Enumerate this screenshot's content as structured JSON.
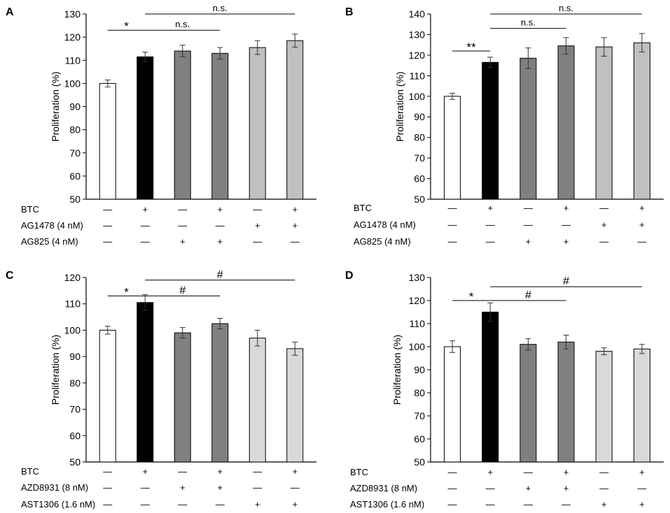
{
  "chart_data": [
    {
      "panel": "A",
      "type": "bar",
      "ylabel": "Proliferation (%)",
      "ylim": [
        50,
        130
      ],
      "yticks": [
        50,
        60,
        70,
        80,
        90,
        100,
        110,
        120,
        130
      ],
      "values": [
        100,
        111.5,
        114,
        113,
        115.5,
        118.5
      ],
      "errors": [
        1.5,
        2,
        2.5,
        2.5,
        3,
        2.8
      ],
      "bar_colors": [
        "#ffffff",
        "#000000",
        "#808080",
        "#808080",
        "#c0c0c0",
        "#c0c0c0"
      ],
      "treatment_rows": [
        {
          "label": "BTC",
          "symbols": [
            "—",
            "+",
            "—",
            "+",
            "—",
            "+"
          ]
        },
        {
          "label": "AG1478 (4 nM)",
          "symbols": [
            "—",
            "—",
            "—",
            "—",
            "+",
            "+"
          ]
        },
        {
          "label": "AG825 (4 nM)",
          "symbols": [
            "—",
            "—",
            "+",
            "+",
            "—",
            "—"
          ]
        }
      ],
      "annotations": [
        {
          "from": 0,
          "to": 1,
          "text": "*",
          "level": 123
        },
        {
          "from": 1,
          "to": 3,
          "text": "n.s.",
          "level": 123
        },
        {
          "from": 1,
          "to": 5,
          "text": "n.s.",
          "level": 130
        }
      ]
    },
    {
      "panel": "B",
      "type": "bar",
      "ylabel": "Proliferation (%)",
      "ylim": [
        50,
        140
      ],
      "yticks": [
        50,
        60,
        70,
        80,
        90,
        100,
        110,
        120,
        130,
        140
      ],
      "values": [
        100,
        116.5,
        118.5,
        124.5,
        124,
        126
      ],
      "errors": [
        1.5,
        2.5,
        5,
        4,
        4.5,
        4.5
      ],
      "bar_colors": [
        "#ffffff",
        "#000000",
        "#808080",
        "#808080",
        "#c0c0c0",
        "#c0c0c0"
      ],
      "treatment_rows": [
        {
          "label": "BTC",
          "symbols": [
            "—",
            "+",
            "—",
            "+",
            "—",
            "+"
          ]
        },
        {
          "label": "AG1478 (4 nM)",
          "symbols": [
            "—",
            "—",
            "—",
            "—",
            "+",
            "+"
          ]
        },
        {
          "label": "AG825 (4 nM)",
          "symbols": [
            "—",
            "—",
            "+",
            "+",
            "—",
            "—"
          ]
        }
      ],
      "annotations": [
        {
          "from": 0,
          "to": 1,
          "text": "**",
          "level": 122
        },
        {
          "from": 1,
          "to": 3,
          "text": "n.s.",
          "level": 133
        },
        {
          "from": 1,
          "to": 5,
          "text": "n.s.",
          "level": 140
        }
      ]
    },
    {
      "panel": "C",
      "type": "bar",
      "ylabel": "Proliferation (%)",
      "ylim": [
        50,
        120
      ],
      "yticks": [
        50,
        60,
        70,
        80,
        90,
        100,
        110,
        120
      ],
      "values": [
        100,
        110.5,
        99,
        102.5,
        97,
        93
      ],
      "errors": [
        1.5,
        3,
        2,
        2,
        3,
        2.5
      ],
      "bar_colors": [
        "#ffffff",
        "#000000",
        "#808080",
        "#808080",
        "#d9d9d9",
        "#d9d9d9"
      ],
      "treatment_rows": [
        {
          "label": "BTC",
          "symbols": [
            "—",
            "+",
            "—",
            "+",
            "—",
            "+"
          ]
        },
        {
          "label": "AZD8931 (8 nM)",
          "symbols": [
            "—",
            "—",
            "+",
            "+",
            "—",
            "—"
          ]
        },
        {
          "label": "AST1306 (1.6 nM)",
          "symbols": [
            "—",
            "—",
            "—",
            "—",
            "+",
            "+"
          ]
        }
      ],
      "annotations": [
        {
          "from": 0,
          "to": 1,
          "text": "*",
          "level": 113
        },
        {
          "from": 1,
          "to": 3,
          "text": "#",
          "level": 113
        },
        {
          "from": 1,
          "to": 5,
          "text": "#",
          "level": 119
        }
      ]
    },
    {
      "panel": "D",
      "type": "bar",
      "ylabel": "Proliferation (%)",
      "ylim": [
        50,
        130
      ],
      "yticks": [
        50,
        60,
        70,
        80,
        90,
        100,
        110,
        120,
        130
      ],
      "values": [
        100,
        115,
        101,
        102,
        98,
        99
      ],
      "errors": [
        2.5,
        4,
        2.5,
        3,
        1.5,
        2
      ],
      "bar_colors": [
        "#ffffff",
        "#000000",
        "#808080",
        "#808080",
        "#d9d9d9",
        "#d9d9d9"
      ],
      "treatment_rows": [
        {
          "label": "BTC",
          "symbols": [
            "—",
            "+",
            "—",
            "+",
            "—",
            "+"
          ]
        },
        {
          "label": "AZD8931 (8 nM)",
          "symbols": [
            "—",
            "—",
            "+",
            "+",
            "—",
            "—"
          ]
        },
        {
          "label": "AST1306 (1.6 nM)",
          "symbols": [
            "—",
            "—",
            "—",
            "—",
            "+",
            "+"
          ]
        }
      ],
      "annotations": [
        {
          "from": 0,
          "to": 1,
          "text": "*",
          "level": 120
        },
        {
          "from": 1,
          "to": 3,
          "text": "#",
          "level": 120
        },
        {
          "from": 1,
          "to": 5,
          "text": "#",
          "level": 126
        }
      ]
    }
  ]
}
